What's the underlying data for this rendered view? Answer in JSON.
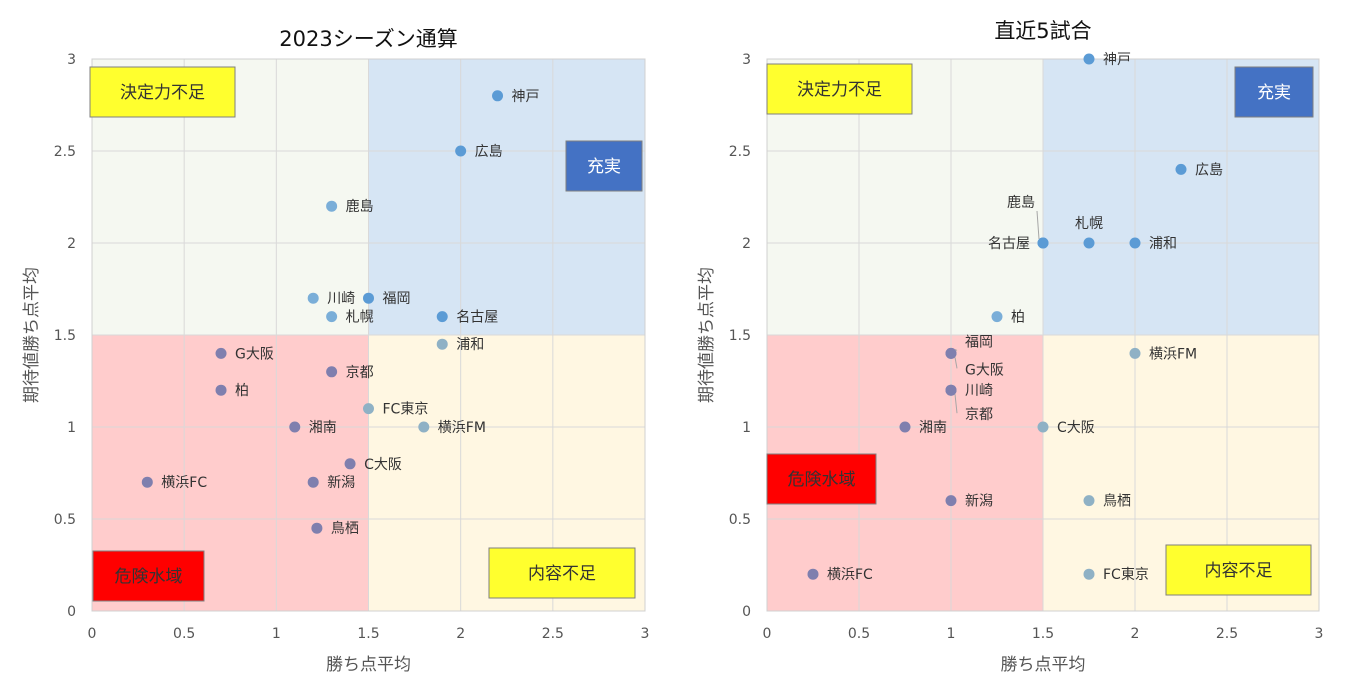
{
  "chart_data": [
    {
      "type": "scatter",
      "title": "2023シーズン通算",
      "xlabel": "勝ち点平均",
      "ylabel": "期待値勝ち点平均",
      "xlim": [
        0,
        3
      ],
      "ylim": [
        0,
        3
      ],
      "xticks": [
        "0",
        "0.5",
        "1",
        "1.5",
        "2",
        "2.5",
        "3"
      ],
      "yticks": [
        "0",
        "0.5",
        "1",
        "1.5",
        "2",
        "2.5",
        "3"
      ],
      "grid": true,
      "quadrant_split": {
        "x": 1.5,
        "y": 1.5
      },
      "quadrant_colors": {
        "top_left": "#f5f8f1",
        "top_right": "#d6e5f4",
        "bottom_left": "#ffcccc",
        "bottom_right": "#fff7e2"
      },
      "quadrant_labels": {
        "top_left": "決定力不足",
        "top_right": "充実",
        "bottom_left": "危険水域",
        "bottom_right": "内容不足"
      },
      "points": [
        {
          "label": "神戸",
          "x": 2.2,
          "y": 2.8
        },
        {
          "label": "広島",
          "x": 2.0,
          "y": 2.5
        },
        {
          "label": "鹿島",
          "x": 1.3,
          "y": 2.2
        },
        {
          "label": "川崎",
          "x": 1.2,
          "y": 1.7
        },
        {
          "label": "福岡",
          "x": 1.5,
          "y": 1.7
        },
        {
          "label": "札幌",
          "x": 1.3,
          "y": 1.6
        },
        {
          "label": "名古屋",
          "x": 1.9,
          "y": 1.6
        },
        {
          "label": "浦和",
          "x": 1.9,
          "y": 1.45
        },
        {
          "label": "G大阪",
          "x": 0.7,
          "y": 1.4
        },
        {
          "label": "京都",
          "x": 1.3,
          "y": 1.3
        },
        {
          "label": "柏",
          "x": 0.7,
          "y": 1.2
        },
        {
          "label": "FC東京",
          "x": 1.5,
          "y": 1.1
        },
        {
          "label": "湘南",
          "x": 1.1,
          "y": 1.0
        },
        {
          "label": "横浜FM",
          "x": 1.8,
          "y": 1.0
        },
        {
          "label": "C大阪",
          "x": 1.4,
          "y": 0.8
        },
        {
          "label": "横浜FC",
          "x": 0.3,
          "y": 0.7
        },
        {
          "label": "新潟",
          "x": 1.2,
          "y": 0.7
        },
        {
          "label": "鳥栖",
          "x": 1.22,
          "y": 0.45
        }
      ]
    },
    {
      "type": "scatter",
      "title": "直近5試合",
      "xlabel": "勝ち点平均",
      "ylabel": "期待値勝ち点平均",
      "xlim": [
        0,
        3
      ],
      "ylim": [
        0,
        3
      ],
      "xticks": [
        "0",
        "0.5",
        "1",
        "1.5",
        "2",
        "2.5",
        "3"
      ],
      "yticks": [
        "0",
        "0.5",
        "1",
        "1.5",
        "2",
        "2.5",
        "3"
      ],
      "grid": true,
      "quadrant_split": {
        "x": 1.5,
        "y": 1.5
      },
      "quadrant_colors": {
        "top_left": "#f5f8f1",
        "top_right": "#d6e5f4",
        "bottom_left": "#ffcccc",
        "bottom_right": "#fff7e2"
      },
      "quadrant_labels": {
        "top_left": "決定力不足",
        "top_right": "充実",
        "bottom_left": "危険水域",
        "bottom_right": "内容不足"
      },
      "points": [
        {
          "label": "神戸",
          "x": 1.75,
          "y": 3.0
        },
        {
          "label": "広島",
          "x": 2.25,
          "y": 2.4
        },
        {
          "label": "鹿島",
          "x": 1.5,
          "y": 2.0
        },
        {
          "label": "名古屋",
          "x": 1.5,
          "y": 2.0
        },
        {
          "label": "札幌",
          "x": 1.75,
          "y": 2.0
        },
        {
          "label": "浦和",
          "x": 2.0,
          "y": 2.0
        },
        {
          "label": "柏",
          "x": 1.25,
          "y": 1.6
        },
        {
          "label": "福岡",
          "x": 1.0,
          "y": 1.4
        },
        {
          "label": "G大阪",
          "x": 1.0,
          "y": 1.4
        },
        {
          "label": "横浜FM",
          "x": 2.0,
          "y": 1.4
        },
        {
          "label": "川崎",
          "x": 1.0,
          "y": 1.2
        },
        {
          "label": "京都",
          "x": 1.0,
          "y": 1.2
        },
        {
          "label": "湘南",
          "x": 0.75,
          "y": 1.0
        },
        {
          "label": "C大阪",
          "x": 1.5,
          "y": 1.0
        },
        {
          "label": "新潟",
          "x": 1.0,
          "y": 0.6
        },
        {
          "label": "鳥栖",
          "x": 1.75,
          "y": 0.6
        },
        {
          "label": "横浜FC",
          "x": 0.25,
          "y": 0.2
        },
        {
          "label": "FC東京",
          "x": 1.75,
          "y": 0.2
        }
      ]
    }
  ],
  "colors": {
    "point_top_right": "#5b9bd5",
    "point_top_left": "#7aaed8",
    "point_bottom_left": "#7f7fae",
    "point_bottom_right": "#8fb1c5",
    "box_yellow": "#ffff2e",
    "box_blue": "#4472c4",
    "box_red": "#ff0000",
    "grid": "#d9d9d9"
  }
}
